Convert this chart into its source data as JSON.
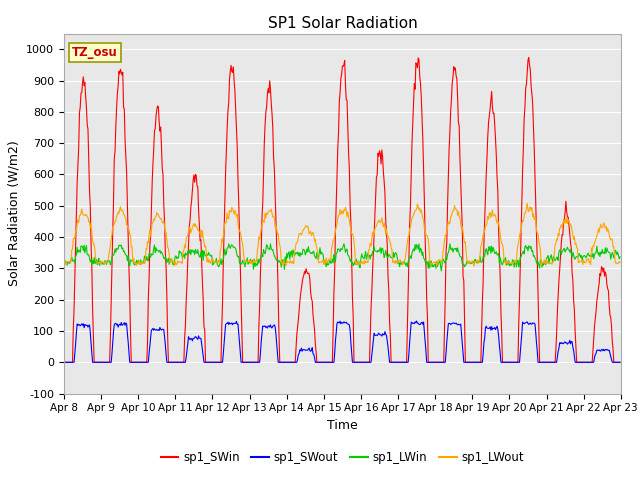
{
  "title": "SP1 Solar Radiation",
  "ylabel": "Solar Radiation (W/m2)",
  "xlabel": "Time",
  "annotation": "TZ_osu",
  "ylim": [
    -100,
    1050
  ],
  "xtick_labels": [
    "Apr 8",
    "Apr 9",
    "Apr 10",
    "Apr 11",
    "Apr 12",
    "Apr 13",
    "Apr 14",
    "Apr 15",
    "Apr 16",
    "Apr 17",
    "Apr 18",
    "Apr 19",
    "Apr 20",
    "Apr 21",
    "Apr 22",
    "Apr 23"
  ],
  "ytick_values": [
    -100,
    0,
    100,
    200,
    300,
    400,
    500,
    600,
    700,
    800,
    900,
    1000
  ],
  "colors": {
    "SWin": "#FF0000",
    "SWout": "#0000FF",
    "LWin": "#00CC00",
    "LWout": "#FFA500"
  },
  "legend_labels": [
    "sp1_SWin",
    "sp1_SWout",
    "sp1_LWin",
    "sp1_LWout"
  ],
  "bg_color": "#E8E8E8",
  "title_fontsize": 11,
  "axis_label_fontsize": 9,
  "tick_fontsize": 8
}
